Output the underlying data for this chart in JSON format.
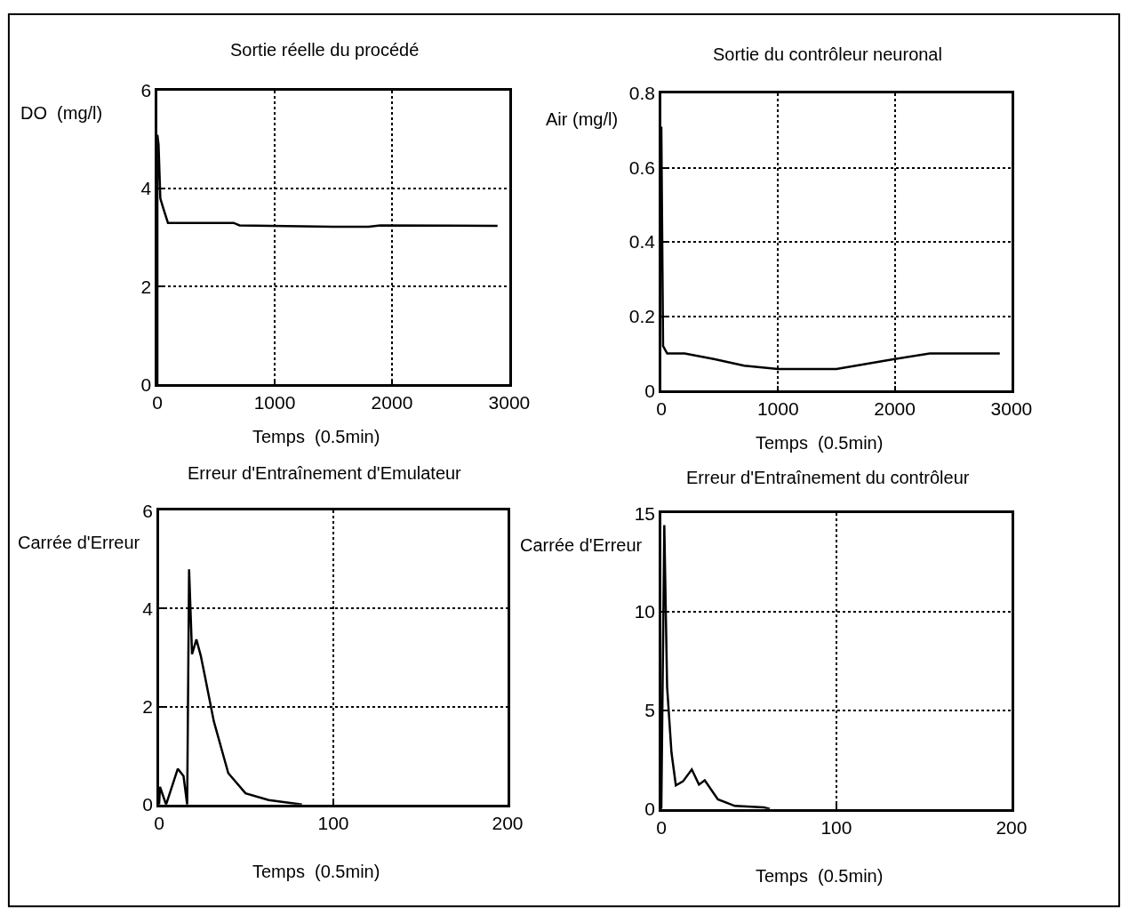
{
  "chart_data": [
    {
      "type": "line",
      "title": "Sortie réelle du procédé",
      "xlabel": "Temps  (0.5min)",
      "ylabel": "DO  (mg/l)",
      "xlim": [
        0,
        3000
      ],
      "ylim": [
        0,
        6
      ],
      "xticks": [
        0,
        1000,
        2000,
        3000
      ],
      "yticks": [
        0,
        2,
        4,
        6
      ],
      "grid": true,
      "series": [
        {
          "color": "#000000",
          "x": [
            0,
            0,
            10,
            25,
            50,
            90,
            650,
            700,
            1500,
            1800,
            1900,
            2900
          ],
          "values": [
            0,
            5.1,
            4.9,
            3.8,
            3.6,
            3.3,
            3.3,
            3.25,
            3.22,
            3.22,
            3.25,
            3.24
          ]
        }
      ]
    },
    {
      "type": "line",
      "title": "Sortie du contrôleur neuronal",
      "xlabel": "Temps  (0.5min)",
      "ylabel": "Air (mg/l)",
      "xlim": [
        0,
        3000
      ],
      "ylim": [
        0,
        0.8
      ],
      "xticks": [
        0,
        1000,
        2000,
        3000
      ],
      "yticks": [
        0,
        0.2,
        0.4,
        0.6,
        0.8
      ],
      "grid": true,
      "series": [
        {
          "color": "#000000",
          "x": [
            0,
            15,
            50,
            200,
            450,
            710,
            1000,
            1500,
            2000,
            2300,
            2900
          ],
          "values": [
            0.71,
            0.12,
            0.1,
            0.1,
            0.085,
            0.067,
            0.058,
            0.058,
            0.085,
            0.1,
            0.1
          ]
        }
      ]
    },
    {
      "type": "line",
      "title": "Erreur d'Entraînement d'Emulateur",
      "xlabel": "Temps  (0.5min)",
      "ylabel": "Carrée d'Erreur",
      "xlim": [
        0,
        200
      ],
      "ylim": [
        0,
        6
      ],
      "xticks": [
        0,
        100,
        200
      ],
      "yticks": [
        0,
        2,
        4,
        6
      ],
      "grid": true,
      "series": [
        {
          "color": "#000000",
          "x": [
            0,
            0.5,
            4,
            10.7,
            14,
            16.1,
            17.2,
            18.9,
            21.4,
            23.9,
            26.4,
            31.4,
            39.7,
            49.6,
            62.9,
            82
          ],
          "values": [
            0,
            0.36,
            0,
            0.73,
            0.58,
            0,
            4.8,
            3.07,
            3.37,
            3.04,
            2.6,
            1.7,
            0.64,
            0.23,
            0.09,
            0
          ]
        }
      ]
    },
    {
      "type": "line",
      "title": "Erreur d'Entraînement du contrôleur",
      "xlabel": "Temps  (0.5min)",
      "ylabel": "Carrée d'Erreur",
      "xlim": [
        0,
        200
      ],
      "ylim": [
        0,
        15
      ],
      "xticks": [
        0,
        100,
        200
      ],
      "yticks": [
        0,
        5,
        10,
        15
      ],
      "grid": true,
      "series": [
        {
          "color": "#000000",
          "x": [
            0,
            1.7,
            3.3,
            5.8,
            8.3,
            12.4,
            17.4,
            21.5,
            24.8,
            32.3,
            42,
            58.6,
            62
          ],
          "values": [
            0,
            14.4,
            6.2,
            2.86,
            1.19,
            1.4,
            2.0,
            1.23,
            1.45,
            0.48,
            0.15,
            0.07,
            0
          ]
        }
      ]
    }
  ]
}
